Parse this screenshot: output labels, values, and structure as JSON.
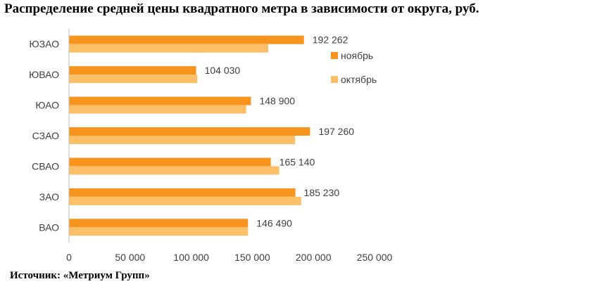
{
  "header": {
    "title": "Распределение средней цены квадратного метра в зависимости от округа, руб."
  },
  "footer": {
    "source": "Источник: «Метриум Групп»"
  },
  "chart_data": {
    "type": "bar",
    "orientation": "horizontal",
    "title": "Распределение средней цены квадратного метра в зависимости от округа, руб.",
    "categories": [
      "ЮЗАО",
      "ЮВАО",
      "ЮАО",
      "СЗАО",
      "СВАО",
      "ЗАО",
      "ВАО"
    ],
    "series": [
      {
        "name": "ноябрь",
        "color": "#F7941D",
        "values": [
          192262,
          104030,
          148900,
          197260,
          165140,
          185230,
          146490
        ]
      },
      {
        "name": "октябрь",
        "color": "#FBBF67",
        "values": [
          163000,
          105000,
          145000,
          185000,
          172000,
          190000,
          146490
        ]
      }
    ],
    "data_labels": [
      "192 262",
      "104 030",
      "148 900",
      "197 260",
      "165 140",
      "185 230",
      "146 490"
    ],
    "xlim": [
      0,
      250000
    ],
    "x_ticks": [
      0,
      50000,
      100000,
      150000,
      200000,
      250000
    ],
    "x_tick_labels": [
      "0",
      "50 000",
      "100 000",
      "150 000",
      "200 000",
      "250 000"
    ],
    "grid": false,
    "legend": "right"
  }
}
